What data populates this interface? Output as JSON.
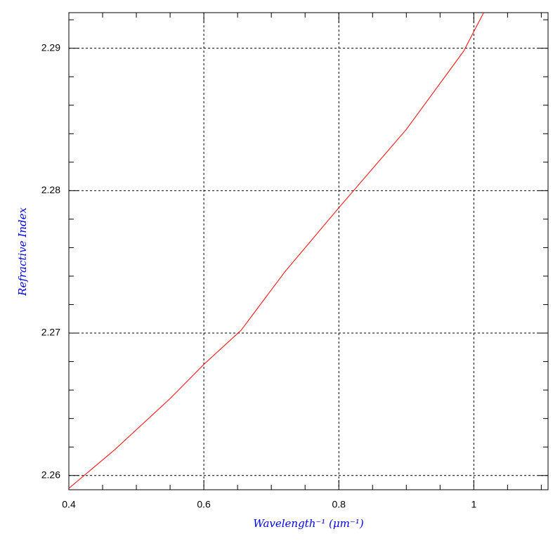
{
  "chart_data": {
    "type": "line",
    "x_label": "Wavelength⁻¹ (μm⁻¹)",
    "y_label": "Refractive Index",
    "series": [
      {
        "color": "#ff0000",
        "x": [
          0.4,
          0.4677,
          0.55,
          0.6,
          0.6552,
          0.72,
          0.8,
          0.9,
          0.985,
          1.0146
        ],
        "values": [
          2.2591,
          2.2618,
          2.2654,
          2.2678,
          2.2702,
          2.2743,
          2.2788,
          2.2843,
          2.2898,
          2.2925
        ]
      }
    ],
    "xlim": [
      0.4,
      1.11
    ],
    "ylim": [
      2.259,
      2.2925
    ],
    "xticks": [
      0.4,
      0.6,
      0.8,
      1
    ],
    "yticks": [
      2.26,
      2.27,
      2.28,
      2.29
    ],
    "xminorticks": [
      0.45,
      0.5,
      0.55,
      0.65,
      0.7,
      0.75,
      0.85,
      0.9,
      0.95,
      1.05,
      1.1
    ],
    "yminorticks": [
      2.262,
      2.264,
      2.266,
      2.268,
      2.272,
      2.274,
      2.276,
      2.278,
      2.282,
      2.284,
      2.286,
      2.288,
      2.292
    ],
    "grid": true
  }
}
